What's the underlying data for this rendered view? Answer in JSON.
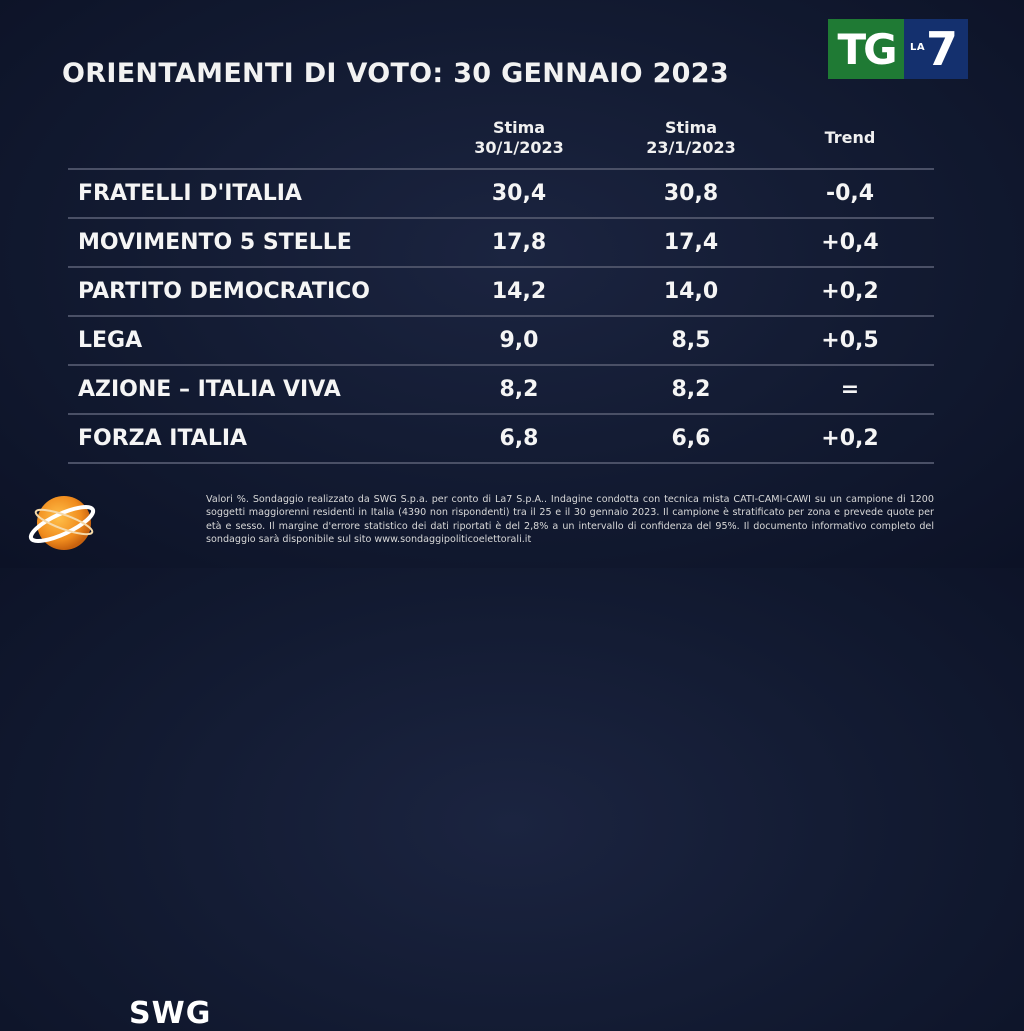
{
  "title": "ORIENTAMENTI DI VOTO: 30 GENNAIO 2023",
  "logo": {
    "tg": "TG",
    "la": "LA",
    "seven": "7"
  },
  "columns": [
    {
      "line1": "Stima",
      "line2": "30/1/2023"
    },
    {
      "line1": "Stima",
      "line2": "23/1/2023"
    },
    {
      "line1": "Trend",
      "line2": ""
    }
  ],
  "rows": [
    {
      "party": "FRATELLI D'ITALIA",
      "current": "30,4",
      "previous": "30,8",
      "trend": "-0,4"
    },
    {
      "party": "MOVIMENTO 5 STELLE",
      "current": "17,8",
      "previous": "17,4",
      "trend": "+0,4"
    },
    {
      "party": "PARTITO DEMOCRATICO",
      "current": "14,2",
      "previous": "14,0",
      "trend": "+0,2"
    },
    {
      "party": "LEGA",
      "current": "9,0",
      "previous": "8,5",
      "trend": "+0,5"
    },
    {
      "party": "AZIONE – ITALIA VIVA",
      "current": "8,2",
      "previous": "8,2",
      "trend": "="
    },
    {
      "party": "FORZA ITALIA",
      "current": "6,8",
      "previous": "6,6",
      "trend": "+0,2"
    }
  ],
  "source_logo": "SWG",
  "note": "Valori %. Sondaggio realizzato da SWG S.p.a. per conto di La7 S.p.A.. Indagine condotta con tecnica mista CATI-CAMI-CAWI su un campione di 1200 soggetti maggiorenni residenti in Italia (4390 non rispondenti) tra il 25 e il 30 gennaio 2023. Il campione è stratificato per zona e prevede quote per età e sesso. Il margine d'errore statistico dei dati riportati è del 2,8% a un intervallo di confidenza del 95%. Il documento informativo completo del sondaggio sarà disponibile sul sito www.sondaggipoliticoelettorali.it",
  "colors": {
    "background": "#121a31",
    "tg_green": "#1f7a34",
    "la7_blue": "#14306e",
    "swg_orange": "#f08c1e"
  }
}
